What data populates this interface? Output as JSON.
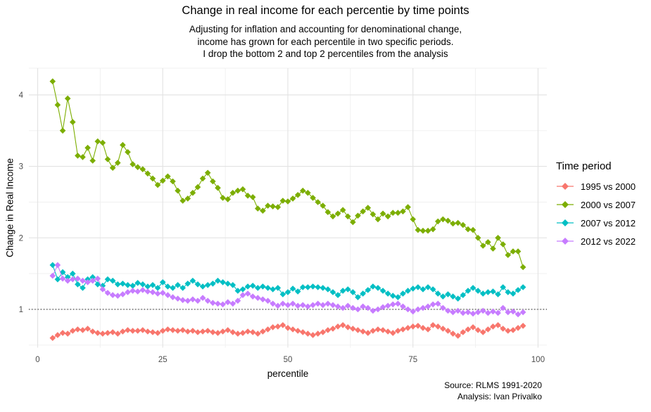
{
  "chart_data": {
    "type": "line",
    "title": "Change in real income for each percentie by time points",
    "subtitle": "Adjusting for inflation and accounting for denominational change,\nincome has grown for each percentile in two specific periods.\nI drop the bottom 2 and top 2 percentiles from the analysis",
    "caption": "Source: RLMS 1991-2020\nAnalysis: Ivan Privalko",
    "xlabel": "percentile",
    "ylabel": "Change in Real Income",
    "x_ticks": [
      0,
      25,
      50,
      75,
      100
    ],
    "y_ticks": [
      1,
      2,
      3,
      4
    ],
    "xlim": [
      -1.7,
      101.7
    ],
    "ylim": [
      0.48,
      4.37
    ],
    "grid": true,
    "marker": "diamond",
    "reference_line_y": 1,
    "reference_line_style": "dotted",
    "legend": {
      "title": "Time period",
      "position": "right"
    },
    "x": {
      "start": 3,
      "end": 97,
      "step": 1
    },
    "series": [
      {
        "name": "1995 vs 2000",
        "color": "#F8766D",
        "values": [
          0.6,
          0.64,
          0.67,
          0.66,
          0.7,
          0.72,
          0.71,
          0.73,
          0.69,
          0.67,
          0.66,
          0.67,
          0.68,
          0.66,
          0.69,
          0.71,
          0.7,
          0.7,
          0.71,
          0.69,
          0.68,
          0.67,
          0.7,
          0.72,
          0.71,
          0.7,
          0.71,
          0.69,
          0.7,
          0.68,
          0.69,
          0.7,
          0.68,
          0.67,
          0.69,
          0.71,
          0.68,
          0.66,
          0.67,
          0.69,
          0.68,
          0.66,
          0.69,
          0.72,
          0.75,
          0.76,
          0.78,
          0.74,
          0.72,
          0.7,
          0.68,
          0.66,
          0.64,
          0.66,
          0.68,
          0.71,
          0.73,
          0.76,
          0.78,
          0.75,
          0.73,
          0.71,
          0.69,
          0.67,
          0.7,
          0.72,
          0.71,
          0.69,
          0.67,
          0.7,
          0.72,
          0.74,
          0.76,
          0.77,
          0.74,
          0.72,
          0.78,
          0.76,
          0.73,
          0.7,
          0.66,
          0.63,
          0.68,
          0.72,
          0.75,
          0.71,
          0.68,
          0.72,
          0.76,
          0.78,
          0.73,
          0.7,
          0.71,
          0.74,
          0.77
        ]
      },
      {
        "name": "2000 vs 2007",
        "color": "#7CAE00",
        "values": [
          4.19,
          3.86,
          3.5,
          3.95,
          3.62,
          3.15,
          3.13,
          3.26,
          3.08,
          3.35,
          3.33,
          3.1,
          2.98,
          3.05,
          3.3,
          3.2,
          3.03,
          2.99,
          2.96,
          2.9,
          2.83,
          2.74,
          2.8,
          2.86,
          2.79,
          2.66,
          2.52,
          2.55,
          2.63,
          2.71,
          2.83,
          2.91,
          2.79,
          2.7,
          2.56,
          2.54,
          2.63,
          2.66,
          2.68,
          2.59,
          2.57,
          2.41,
          2.38,
          2.45,
          2.44,
          2.43,
          2.52,
          2.51,
          2.55,
          2.6,
          2.66,
          2.63,
          2.56,
          2.5,
          2.45,
          2.36,
          2.3,
          2.34,
          2.39,
          2.3,
          2.22,
          2.31,
          2.37,
          2.42,
          2.33,
          2.26,
          2.34,
          2.3,
          2.35,
          2.35,
          2.37,
          2.43,
          2.26,
          2.11,
          2.1,
          2.1,
          2.12,
          2.23,
          2.26,
          2.24,
          2.2,
          2.21,
          2.18,
          2.12,
          2.11,
          2.0,
          1.89,
          1.94,
          1.85,
          2.0,
          1.91,
          1.76,
          1.81,
          1.81,
          1.59
        ]
      },
      {
        "name": "2007 vs 2012",
        "color": "#00BFC4",
        "values": [
          1.62,
          1.42,
          1.52,
          1.45,
          1.5,
          1.35,
          1.3,
          1.42,
          1.45,
          1.35,
          1.33,
          1.42,
          1.4,
          1.35,
          1.36,
          1.34,
          1.33,
          1.37,
          1.35,
          1.32,
          1.34,
          1.3,
          1.38,
          1.32,
          1.3,
          1.34,
          1.3,
          1.36,
          1.4,
          1.35,
          1.32,
          1.34,
          1.36,
          1.4,
          1.38,
          1.36,
          1.34,
          1.26,
          1.28,
          1.32,
          1.33,
          1.3,
          1.32,
          1.3,
          1.28,
          1.3,
          1.21,
          1.24,
          1.29,
          1.25,
          1.31,
          1.31,
          1.32,
          1.31,
          1.3,
          1.28,
          1.24,
          1.2,
          1.26,
          1.28,
          1.24,
          1.17,
          1.22,
          1.27,
          1.32,
          1.3,
          1.26,
          1.22,
          1.19,
          1.17,
          1.22,
          1.26,
          1.29,
          1.31,
          1.28,
          1.31,
          1.28,
          1.22,
          1.18,
          1.21,
          1.18,
          1.15,
          1.2,
          1.26,
          1.3,
          1.26,
          1.22,
          1.24,
          1.25,
          1.21,
          1.31,
          1.24,
          1.22,
          1.27,
          1.31
        ]
      },
      {
        "name": "2012 vs 2022",
        "color": "#C77CFF",
        "values": [
          1.47,
          1.62,
          1.43,
          1.4,
          1.42,
          1.43,
          1.4,
          1.38,
          1.4,
          1.43,
          1.28,
          1.23,
          1.2,
          1.19,
          1.21,
          1.24,
          1.26,
          1.25,
          1.27,
          1.25,
          1.24,
          1.22,
          1.23,
          1.2,
          1.17,
          1.15,
          1.13,
          1.12,
          1.14,
          1.12,
          1.16,
          1.12,
          1.09,
          1.08,
          1.07,
          1.1,
          1.08,
          1.12,
          1.2,
          1.22,
          1.18,
          1.16,
          1.14,
          1.12,
          1.08,
          1.05,
          1.08,
          1.06,
          1.08,
          1.05,
          1.06,
          1.04,
          1.06,
          1.08,
          1.06,
          1.08,
          1.06,
          1.04,
          1.02,
          1.05,
          1.02,
          1.0,
          1.04,
          1.02,
          0.98,
          1.0,
          1.03,
          1.05,
          1.07,
          1.08,
          1.04,
          1.0,
          0.97,
          1.0,
          1.02,
          1.04,
          1.07,
          1.08,
          1.02,
          0.98,
          0.96,
          0.98,
          0.95,
          0.96,
          0.94,
          0.96,
          0.98,
          0.95,
          0.97,
          0.95,
          1.02,
          0.96,
          0.97,
          0.93,
          0.96
        ]
      }
    ],
    "colors": {
      "grid_major": "#e4e4e4",
      "grid_minor": "#f0f0f0",
      "tick_label": "#4d4d4d",
      "reference_line": "#000000"
    }
  }
}
